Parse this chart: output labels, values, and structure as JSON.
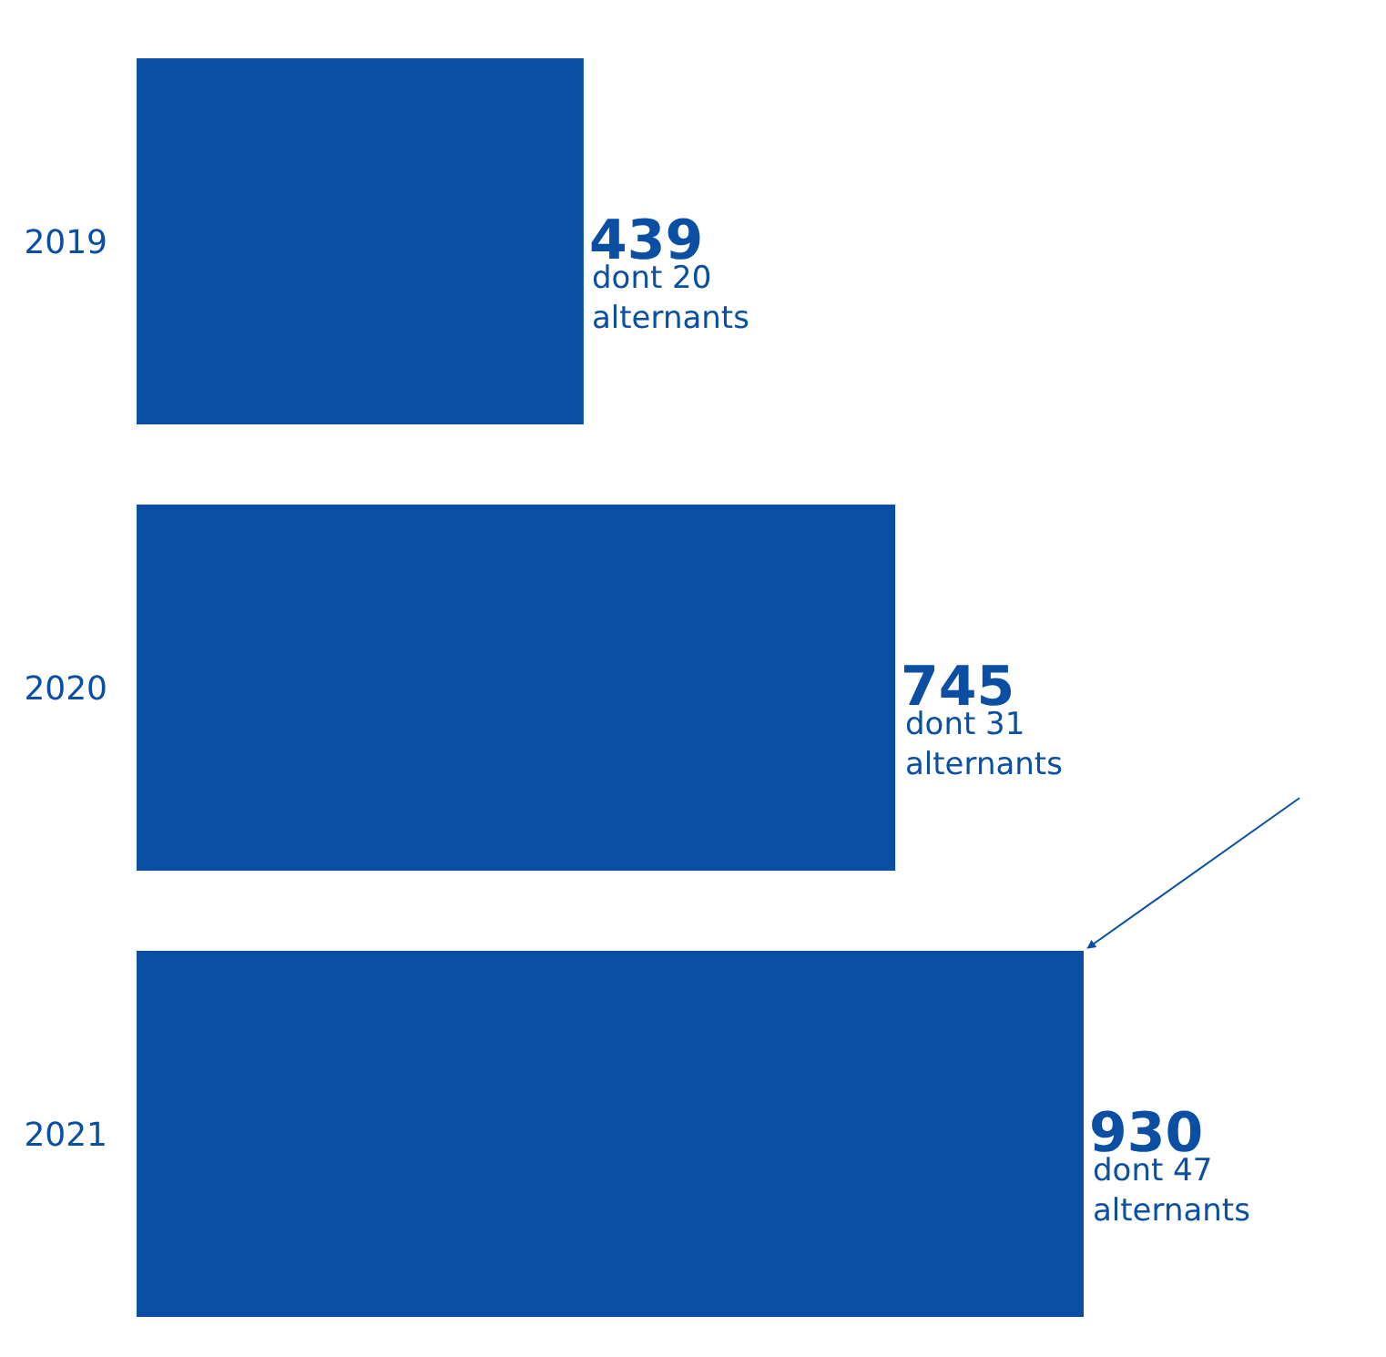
{
  "chart_data": {
    "type": "bar",
    "orientation": "horizontal",
    "categories": [
      "2019",
      "2020",
      "2021"
    ],
    "series": [
      {
        "color": "#0a4fa3",
        "values": [
          439,
          745,
          930
        ]
      }
    ],
    "data_labels": true,
    "annotations": [
      {
        "text": "dont 20\nalternants",
        "x": 439,
        "y": "2019"
      },
      {
        "text": "dont 31\nalternants",
        "x": 745,
        "y": "2020"
      },
      {
        "text": "dont 47\nalternants",
        "x": 930,
        "y": "2021"
      }
    ],
    "legend": false,
    "tick_labels": "y"
  }
}
